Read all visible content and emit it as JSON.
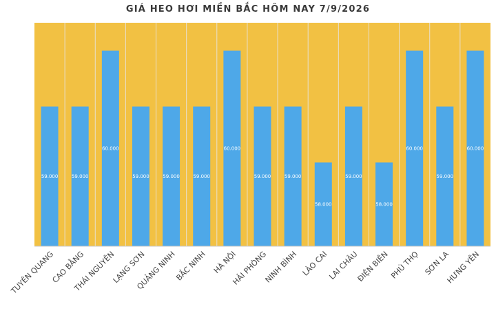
{
  "chart_data": {
    "type": "bar",
    "title": "GIÁ HEO HƠI MIỀN BẮC HÔM NAY 7/9/2026",
    "categories": [
      "TUYÊN QUANG",
      "CAO BẰNG",
      "THÁI NGUYÊN",
      "LẠNG SƠN",
      "QUẢNG NINH",
      "BẮC NINH",
      "HÀ NỘI",
      "HẢI PHÒNG",
      "NINH BÌNH",
      "LÀO CAI",
      "LAI CHÂU",
      "ĐIỆN BIÊN",
      "PHÚ THỌ",
      "SƠN LA",
      "HƯNG YÊN"
    ],
    "values": [
      59000,
      59000,
      60000,
      59000,
      59000,
      59000,
      60000,
      59000,
      59000,
      58000,
      59000,
      58000,
      60000,
      59000,
      60000
    ],
    "data_labels": [
      "59.000",
      "59.000",
      "60.000",
      "59.000",
      "59.000",
      "59.000",
      "60.000",
      "59.000",
      "59.000",
      "58.000",
      "59.000",
      "58.000",
      "60.000",
      "59.000",
      "60.000"
    ],
    "ylim": [
      56500,
      60500
    ],
    "grid": false,
    "legend": "none",
    "colors": {
      "bar": "#4ea8e8",
      "plot_background": "#f2c143",
      "separator": "#e8e0cf"
    }
  }
}
